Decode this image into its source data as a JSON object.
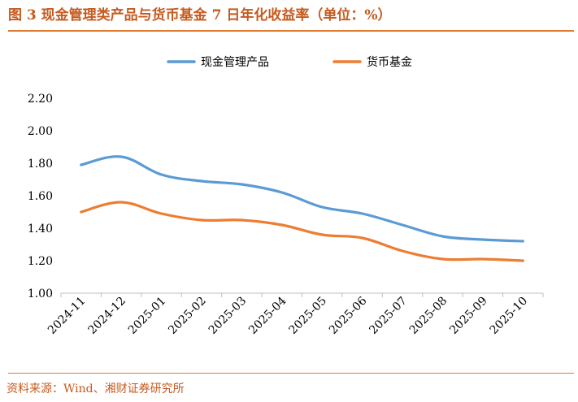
{
  "figure": {
    "title": "图 3  现金管理类产品与货币基金 7 日年化收益率（单位：%）",
    "source": "资料来源：Wind、湘财证券研究所"
  },
  "colors": {
    "accent": "#E07A2E",
    "title": "#C65A1E",
    "series_cash": "#5B9BD5",
    "series_money": "#ED7D31",
    "axis": "#BFBFBF",
    "text": "#000000"
  },
  "chart_data": {
    "type": "line",
    "title": "",
    "xlabel": "",
    "ylabel": "",
    "categories": [
      "2024-11",
      "2024-12",
      "2025-01",
      "2025-02",
      "2025-03",
      "2025-04",
      "2025-05",
      "2025-06",
      "2025-07",
      "2025-08",
      "2025-09",
      "2025-10"
    ],
    "series": [
      {
        "name": "现金管理产品",
        "color": "#5B9BD5",
        "values": [
          1.79,
          1.84,
          1.73,
          1.69,
          1.67,
          1.62,
          1.53,
          1.49,
          1.42,
          1.35,
          1.33,
          1.32
        ]
      },
      {
        "name": "货币基金",
        "color": "#ED7D31",
        "values": [
          1.5,
          1.56,
          1.49,
          1.45,
          1.45,
          1.42,
          1.36,
          1.34,
          1.26,
          1.21,
          1.21,
          1.2
        ]
      }
    ],
    "ylim": [
      1.0,
      2.2
    ],
    "yticks": [
      "1.00",
      "1.20",
      "1.40",
      "1.60",
      "1.80",
      "2.00",
      "2.20"
    ],
    "grid": false,
    "legend_position": "top-center"
  }
}
